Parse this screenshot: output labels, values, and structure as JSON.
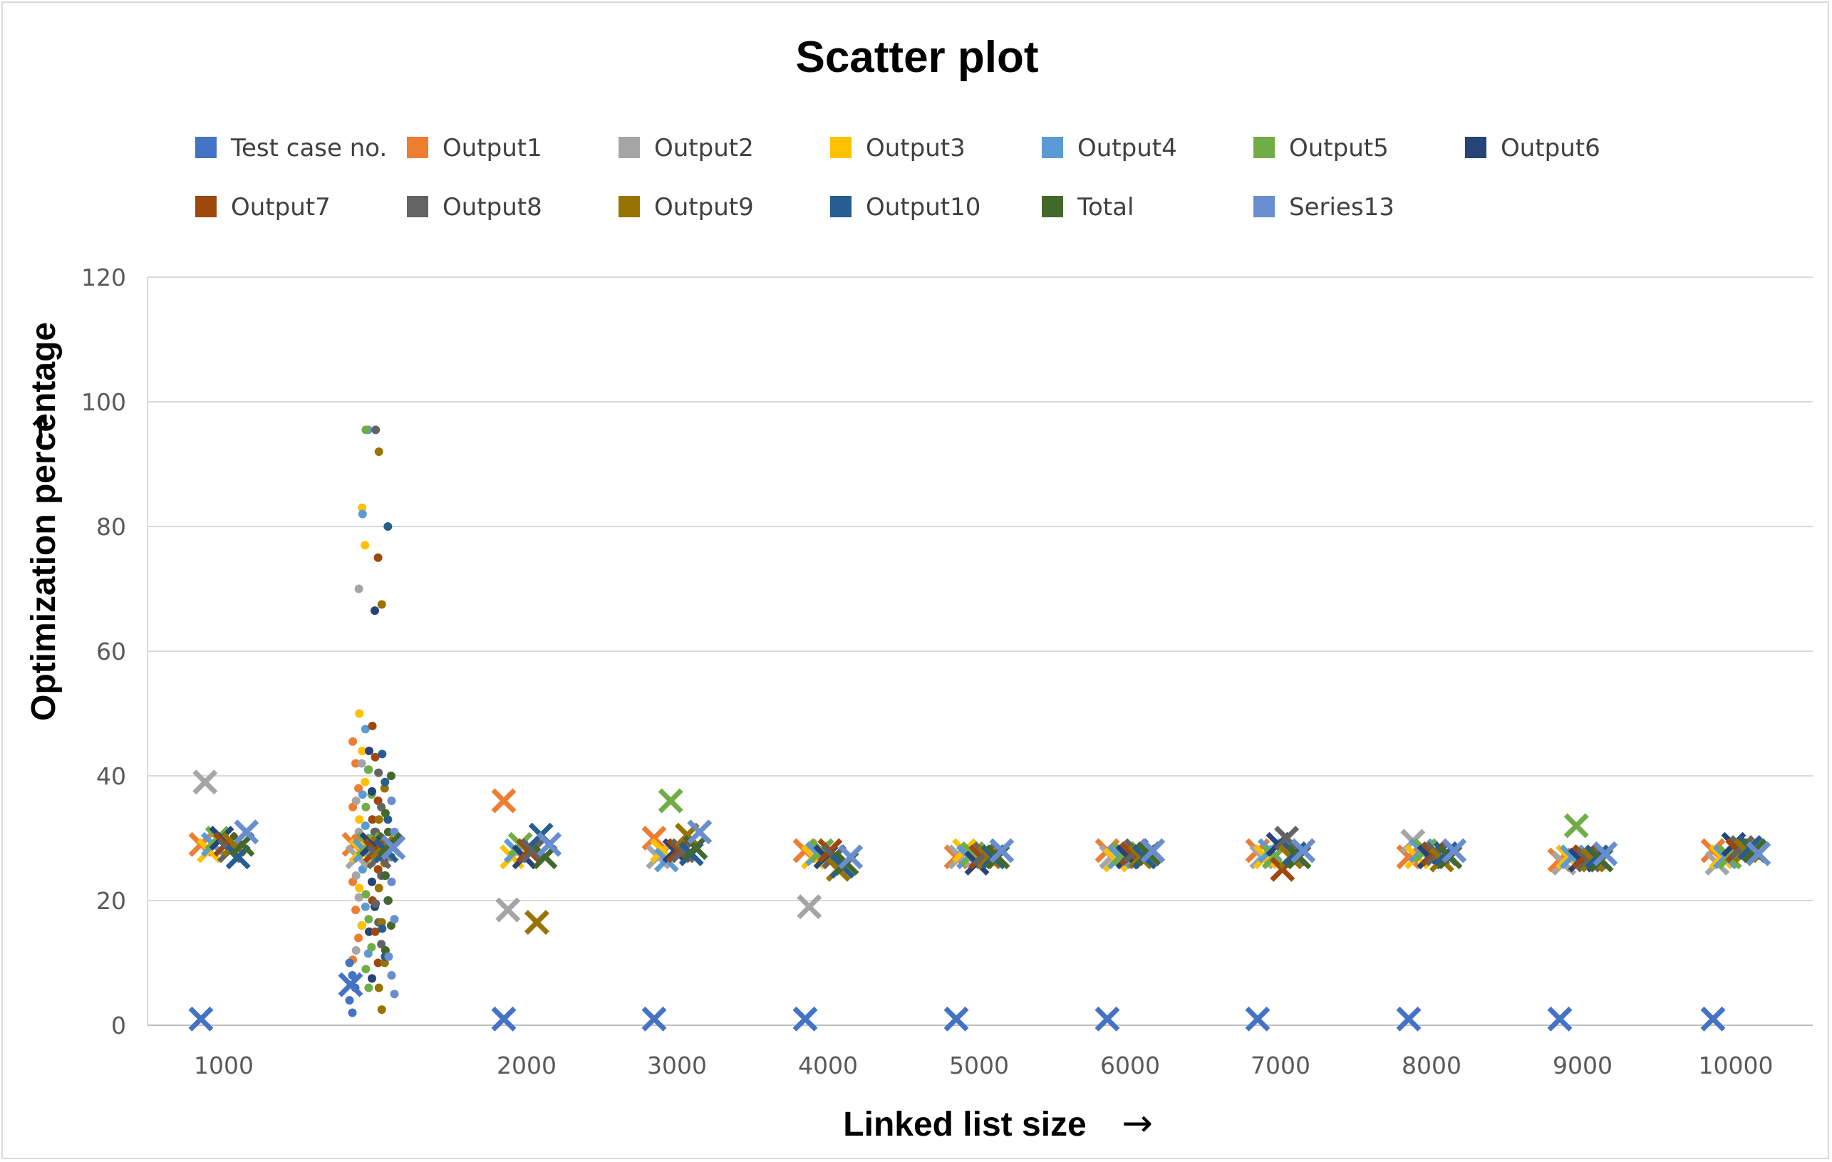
{
  "chart_data": {
    "type": "scatter",
    "title": "Scatter plot",
    "xlabel": "Linked list size",
    "ylabel": "Optimization percentage",
    "xlabel_arrow": "→",
    "ylabel_arrow": "→",
    "x_categories": [
      "1000",
      "2000",
      "3000",
      "4000",
      "5000",
      "6000",
      "7000",
      "8000",
      "9000",
      "10000"
    ],
    "ylim": [
      0,
      120
    ],
    "yticks": [
      0,
      20,
      40,
      60,
      80,
      100,
      120
    ],
    "grid": true,
    "legend_position": "top",
    "series": [
      {
        "name": "Test case no.",
        "color": "#4472C4"
      },
      {
        "name": "Output1",
        "color": "#ED7D31"
      },
      {
        "name": "Output2",
        "color": "#A5A5A5"
      },
      {
        "name": "Output3",
        "color": "#FFC000"
      },
      {
        "name": "Output4",
        "color": "#5B9BD5"
      },
      {
        "name": "Output5",
        "color": "#70AD47"
      },
      {
        "name": "Output6",
        "color": "#264478"
      },
      {
        "name": "Output7",
        "color": "#9E480E"
      },
      {
        "name": "Output8",
        "color": "#636363"
      },
      {
        "name": "Output9",
        "color": "#997300"
      },
      {
        "name": "Output10",
        "color": "#255E91"
      },
      {
        "name": "Total",
        "color": "#43682B"
      },
      {
        "name": "Series13",
        "color": "#698ED0"
      }
    ],
    "cross_points": [
      {
        "series": 0,
        "group": 0,
        "y": 1
      },
      {
        "series": 0,
        "group": 1,
        "y": 1
      },
      {
        "series": 0,
        "group": 2,
        "y": 1
      },
      {
        "series": 0,
        "group": 3,
        "y": 1
      },
      {
        "series": 0,
        "group": 4,
        "y": 1
      },
      {
        "series": 0,
        "group": 5,
        "y": 1
      },
      {
        "series": 0,
        "group": 6,
        "y": 1
      },
      {
        "series": 0,
        "group": 7,
        "y": 1
      },
      {
        "series": 0,
        "group": 8,
        "y": 1
      },
      {
        "series": 0,
        "group": 9,
        "y": 1
      },
      {
        "series": 1,
        "group": 0,
        "y": 29
      },
      {
        "series": 2,
        "group": 0,
        "y": 39
      },
      {
        "series": 3,
        "group": 0,
        "y": 28
      },
      {
        "series": 4,
        "group": 0,
        "y": 29
      },
      {
        "series": 5,
        "group": 0,
        "y": 30
      },
      {
        "series": 6,
        "group": 0,
        "y": 30
      },
      {
        "series": 7,
        "group": 0,
        "y": 29
      },
      {
        "series": 8,
        "group": 0,
        "y": 28
      },
      {
        "series": 9,
        "group": 0,
        "y": 29
      },
      {
        "series": 10,
        "group": 0,
        "y": 27
      },
      {
        "series": 11,
        "group": 0,
        "y": 29
      },
      {
        "series": 12,
        "group": 0,
        "y": 31
      },
      {
        "series": 1,
        "group": 1,
        "y": 36
      },
      {
        "series": 2,
        "group": 1,
        "y": 18.5
      },
      {
        "series": 3,
        "group": 1,
        "y": 27
      },
      {
        "series": 4,
        "group": 1,
        "y": 28
      },
      {
        "series": 5,
        "group": 1,
        "y": 29
      },
      {
        "series": 6,
        "group": 1,
        "y": 27
      },
      {
        "series": 7,
        "group": 1,
        "y": 28
      },
      {
        "series": 8,
        "group": 1,
        "y": 28
      },
      {
        "series": 9,
        "group": 1,
        "y": 16.5
      },
      {
        "series": 10,
        "group": 1,
        "y": 30.5
      },
      {
        "series": 11,
        "group": 1,
        "y": 27
      },
      {
        "series": 12,
        "group": 1,
        "y": 29
      },
      {
        "series": 1,
        "group": 2,
        "y": 30
      },
      {
        "series": 2,
        "group": 2,
        "y": 27
      },
      {
        "series": 3,
        "group": 2,
        "y": 28
      },
      {
        "series": 4,
        "group": 2,
        "y": 26.5
      },
      {
        "series": 5,
        "group": 2,
        "y": 36
      },
      {
        "series": 6,
        "group": 2,
        "y": 28
      },
      {
        "series": 7,
        "group": 2,
        "y": 28
      },
      {
        "series": 8,
        "group": 2,
        "y": 28
      },
      {
        "series": 9,
        "group": 2,
        "y": 30.5
      },
      {
        "series": 10,
        "group": 2,
        "y": 27.5
      },
      {
        "series": 11,
        "group": 2,
        "y": 28.5
      },
      {
        "series": 12,
        "group": 2,
        "y": 31
      },
      {
        "series": 1,
        "group": 3,
        "y": 28
      },
      {
        "series": 2,
        "group": 3,
        "y": 19
      },
      {
        "series": 3,
        "group": 3,
        "y": 27
      },
      {
        "series": 4,
        "group": 3,
        "y": 27.5
      },
      {
        "series": 5,
        "group": 3,
        "y": 28
      },
      {
        "series": 6,
        "group": 3,
        "y": 27
      },
      {
        "series": 7,
        "group": 3,
        "y": 28
      },
      {
        "series": 8,
        "group": 3,
        "y": 27
      },
      {
        "series": 9,
        "group": 3,
        "y": 25
      },
      {
        "series": 10,
        "group": 3,
        "y": 25.5
      },
      {
        "series": 11,
        "group": 3,
        "y": 26
      },
      {
        "series": 12,
        "group": 3,
        "y": 27
      },
      {
        "series": 1,
        "group": 4,
        "y": 27
      },
      {
        "series": 2,
        "group": 4,
        "y": 27
      },
      {
        "series": 3,
        "group": 4,
        "y": 28
      },
      {
        "series": 4,
        "group": 4,
        "y": 27
      },
      {
        "series": 5,
        "group": 4,
        "y": 27.5
      },
      {
        "series": 6,
        "group": 4,
        "y": 26
      },
      {
        "series": 7,
        "group": 4,
        "y": 27
      },
      {
        "series": 8,
        "group": 4,
        "y": 27.5
      },
      {
        "series": 9,
        "group": 4,
        "y": 27
      },
      {
        "series": 10,
        "group": 4,
        "y": 27
      },
      {
        "series": 11,
        "group": 4,
        "y": 27
      },
      {
        "series": 12,
        "group": 4,
        "y": 28
      },
      {
        "series": 1,
        "group": 5,
        "y": 28
      },
      {
        "series": 2,
        "group": 5,
        "y": 27
      },
      {
        "series": 3,
        "group": 5,
        "y": 26.5
      },
      {
        "series": 4,
        "group": 5,
        "y": 27
      },
      {
        "series": 5,
        "group": 5,
        "y": 27.5
      },
      {
        "series": 6,
        "group": 5,
        "y": 27
      },
      {
        "series": 7,
        "group": 5,
        "y": 27.5
      },
      {
        "series": 8,
        "group": 5,
        "y": 28
      },
      {
        "series": 9,
        "group": 5,
        "y": 27
      },
      {
        "series": 10,
        "group": 5,
        "y": 27
      },
      {
        "series": 11,
        "group": 5,
        "y": 27.5
      },
      {
        "series": 12,
        "group": 5,
        "y": 28
      },
      {
        "series": 1,
        "group": 6,
        "y": 28
      },
      {
        "series": 2,
        "group": 6,
        "y": 27
      },
      {
        "series": 3,
        "group": 6,
        "y": 27
      },
      {
        "series": 4,
        "group": 6,
        "y": 28
      },
      {
        "series": 5,
        "group": 6,
        "y": 27
      },
      {
        "series": 6,
        "group": 6,
        "y": 29
      },
      {
        "series": 7,
        "group": 6,
        "y": 25
      },
      {
        "series": 8,
        "group": 6,
        "y": 30
      },
      {
        "series": 9,
        "group": 6,
        "y": 27
      },
      {
        "series": 10,
        "group": 6,
        "y": 27.5
      },
      {
        "series": 11,
        "group": 6,
        "y": 27
      },
      {
        "series": 12,
        "group": 6,
        "y": 28
      },
      {
        "series": 1,
        "group": 7,
        "y": 27
      },
      {
        "series": 2,
        "group": 7,
        "y": 29.5
      },
      {
        "series": 3,
        "group": 7,
        "y": 27
      },
      {
        "series": 4,
        "group": 7,
        "y": 28
      },
      {
        "series": 5,
        "group": 7,
        "y": 28
      },
      {
        "series": 6,
        "group": 7,
        "y": 27
      },
      {
        "series": 7,
        "group": 7,
        "y": 27.5
      },
      {
        "series": 8,
        "group": 7,
        "y": 27.5
      },
      {
        "series": 9,
        "group": 7,
        "y": 26.5
      },
      {
        "series": 10,
        "group": 7,
        "y": 27.5
      },
      {
        "series": 11,
        "group": 7,
        "y": 27
      },
      {
        "series": 12,
        "group": 7,
        "y": 28
      },
      {
        "series": 1,
        "group": 8,
        "y": 26.5
      },
      {
        "series": 2,
        "group": 8,
        "y": 26
      },
      {
        "series": 3,
        "group": 8,
        "y": 27
      },
      {
        "series": 4,
        "group": 8,
        "y": 27
      },
      {
        "series": 5,
        "group": 8,
        "y": 32
      },
      {
        "series": 6,
        "group": 8,
        "y": 26.5
      },
      {
        "series": 7,
        "group": 8,
        "y": 27
      },
      {
        "series": 8,
        "group": 8,
        "y": 26.5
      },
      {
        "series": 9,
        "group": 8,
        "y": 26.5
      },
      {
        "series": 10,
        "group": 8,
        "y": 27
      },
      {
        "series": 11,
        "group": 8,
        "y": 26.5
      },
      {
        "series": 12,
        "group": 8,
        "y": 27.5
      },
      {
        "series": 1,
        "group": 9,
        "y": 28
      },
      {
        "series": 2,
        "group": 9,
        "y": 26
      },
      {
        "series": 3,
        "group": 9,
        "y": 27
      },
      {
        "series": 4,
        "group": 9,
        "y": 27
      },
      {
        "series": 5,
        "group": 9,
        "y": 27
      },
      {
        "series": 6,
        "group": 9,
        "y": 29
      },
      {
        "series": 7,
        "group": 9,
        "y": 28
      },
      {
        "series": 8,
        "group": 9,
        "y": 28.5
      },
      {
        "series": 9,
        "group": 9,
        "y": 28
      },
      {
        "series": 10,
        "group": 9,
        "y": 28.5
      },
      {
        "series": 11,
        "group": 9,
        "y": 28
      },
      {
        "series": 12,
        "group": 9,
        "y": 27.5
      }
    ],
    "scatter_dots": [
      {
        "series": 1,
        "y": 45.5
      },
      {
        "series": 1,
        "y": 42
      },
      {
        "series": 1,
        "y": 38
      },
      {
        "series": 1,
        "y": 35
      },
      {
        "series": 1,
        "y": 30
      },
      {
        "series": 1,
        "y": 27
      },
      {
        "series": 1,
        "y": 23
      },
      {
        "series": 1,
        "y": 18.5
      },
      {
        "series": 1,
        "y": 14
      },
      {
        "series": 1,
        "y": 10.5
      },
      {
        "series": 2,
        "y": 70
      },
      {
        "series": 2,
        "y": 42
      },
      {
        "series": 2,
        "y": 36
      },
      {
        "series": 2,
        "y": 31
      },
      {
        "series": 2,
        "y": 28
      },
      {
        "series": 2,
        "y": 24
      },
      {
        "series": 2,
        "y": 20.5
      },
      {
        "series": 2,
        "y": 16
      },
      {
        "series": 2,
        "y": 12
      },
      {
        "series": 3,
        "y": 83
      },
      {
        "series": 3,
        "y": 77
      },
      {
        "series": 3,
        "y": 50
      },
      {
        "series": 3,
        "y": 44
      },
      {
        "series": 3,
        "y": 39
      },
      {
        "series": 3,
        "y": 33
      },
      {
        "series": 3,
        "y": 29
      },
      {
        "series": 3,
        "y": 26
      },
      {
        "series": 3,
        "y": 22
      },
      {
        "series": 3,
        "y": 16
      },
      {
        "series": 4,
        "y": 95.5
      },
      {
        "series": 4,
        "y": 82
      },
      {
        "series": 4,
        "y": 47.5
      },
      {
        "series": 4,
        "y": 41
      },
      {
        "series": 4,
        "y": 37
      },
      {
        "series": 4,
        "y": 32
      },
      {
        "series": 4,
        "y": 28
      },
      {
        "series": 4,
        "y": 25
      },
      {
        "series": 4,
        "y": 19
      },
      {
        "series": 4,
        "y": 11.5
      },
      {
        "series": 5,
        "y": 95.5
      },
      {
        "series": 5,
        "y": 41
      },
      {
        "series": 5,
        "y": 37
      },
      {
        "series": 5,
        "y": 35
      },
      {
        "series": 5,
        "y": 30
      },
      {
        "series": 5,
        "y": 26
      },
      {
        "series": 5,
        "y": 21
      },
      {
        "series": 5,
        "y": 17
      },
      {
        "series": 5,
        "y": 12.5
      },
      {
        "series": 5,
        "y": 9
      },
      {
        "series": 5,
        "y": 6
      },
      {
        "series": 6,
        "y": 66.5
      },
      {
        "series": 6,
        "y": 44
      },
      {
        "series": 6,
        "y": 37.5
      },
      {
        "series": 6,
        "y": 31
      },
      {
        "series": 6,
        "y": 27
      },
      {
        "series": 6,
        "y": 23
      },
      {
        "series": 6,
        "y": 19
      },
      {
        "series": 6,
        "y": 15
      },
      {
        "series": 6,
        "y": 7.5
      },
      {
        "series": 7,
        "y": 75
      },
      {
        "series": 7,
        "y": 48
      },
      {
        "series": 7,
        "y": 43
      },
      {
        "series": 7,
        "y": 36
      },
      {
        "series": 7,
        "y": 33
      },
      {
        "series": 7,
        "y": 29
      },
      {
        "series": 7,
        "y": 25
      },
      {
        "series": 7,
        "y": 20
      },
      {
        "series": 7,
        "y": 15
      },
      {
        "series": 7,
        "y": 10
      },
      {
        "series": 8,
        "y": 95.5
      },
      {
        "series": 8,
        "y": 40.5
      },
      {
        "series": 8,
        "y": 35
      },
      {
        "series": 8,
        "y": 31
      },
      {
        "series": 8,
        "y": 27
      },
      {
        "series": 8,
        "y": 24
      },
      {
        "series": 8,
        "y": 19.5
      },
      {
        "series": 8,
        "y": 16.5
      },
      {
        "series": 8,
        "y": 13
      },
      {
        "series": 9,
        "y": 92
      },
      {
        "series": 9,
        "y": 67.5
      },
      {
        "series": 9,
        "y": 38
      },
      {
        "series": 9,
        "y": 33
      },
      {
        "series": 9,
        "y": 30
      },
      {
        "series": 9,
        "y": 26
      },
      {
        "series": 9,
        "y": 22
      },
      {
        "series": 9,
        "y": 16.5
      },
      {
        "series": 9,
        "y": 10
      },
      {
        "series": 9,
        "y": 6
      },
      {
        "series": 9,
        "y": 2.5
      },
      {
        "series": 10,
        "y": 80
      },
      {
        "series": 10,
        "y": 43.5
      },
      {
        "series": 10,
        "y": 39
      },
      {
        "series": 10,
        "y": 33
      },
      {
        "series": 10,
        "y": 28.5
      },
      {
        "series": 10,
        "y": 24
      },
      {
        "series": 10,
        "y": 20
      },
      {
        "series": 10,
        "y": 15.5
      },
      {
        "series": 10,
        "y": 11
      },
      {
        "series": 11,
        "y": 40
      },
      {
        "series": 11,
        "y": 34
      },
      {
        "series": 11,
        "y": 31
      },
      {
        "series": 11,
        "y": 27
      },
      {
        "series": 11,
        "y": 24
      },
      {
        "series": 11,
        "y": 20
      },
      {
        "series": 11,
        "y": 16
      },
      {
        "series": 11,
        "y": 12
      },
      {
        "series": 12,
        "y": 36
      },
      {
        "series": 12,
        "y": 31
      },
      {
        "series": 12,
        "y": 27
      },
      {
        "series": 12,
        "y": 23
      },
      {
        "series": 12,
        "y": 17
      },
      {
        "series": 12,
        "y": 11
      },
      {
        "series": 12,
        "y": 8
      },
      {
        "series": 12,
        "y": 5
      },
      {
        "series": 0,
        "y": 10
      },
      {
        "series": 0,
        "y": 8
      },
      {
        "series": 0,
        "y": 6
      },
      {
        "series": 0,
        "y": 4
      },
      {
        "series": 0,
        "y": 2
      }
    ],
    "cluster_crosses": [
      {
        "series": 0,
        "y": 6.5
      },
      {
        "series": 1,
        "y": 29
      },
      {
        "series": 2,
        "y": 27
      },
      {
        "series": 3,
        "y": 28
      },
      {
        "series": 4,
        "y": 28
      },
      {
        "series": 5,
        "y": 29
      },
      {
        "series": 6,
        "y": 29
      },
      {
        "series": 7,
        "y": 28
      },
      {
        "series": 8,
        "y": 27
      },
      {
        "series": 9,
        "y": 28.5
      },
      {
        "series": 10,
        "y": 28
      },
      {
        "series": 11,
        "y": 29
      },
      {
        "series": 12,
        "y": 28.5
      }
    ]
  }
}
